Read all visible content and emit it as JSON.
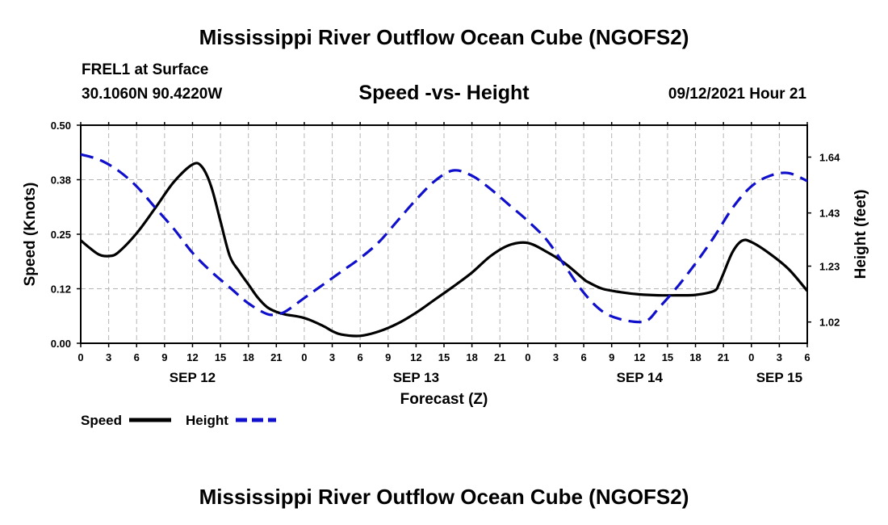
{
  "header": {
    "title": "Mississippi River Outflow Ocean Cube (NGOFS2)",
    "station": "FREL1 at Surface",
    "coords": "30.1060N  90.4220W",
    "subtitle": "Speed -vs- Height",
    "datetime": "09/12/2021 Hour 21"
  },
  "footer": {
    "title": "Mississippi River Outflow Ocean Cube (NGOFS2)"
  },
  "chart_data": {
    "type": "line",
    "title": "Speed -vs- Height",
    "xlabel": "Forecast (Z)",
    "ylabel": "Speed (Knots)",
    "y2label": "Height (feet)",
    "xlim": [
      0,
      78
    ],
    "ylim": [
      0,
      0.5
    ],
    "y2lim": [
      0.94,
      1.76
    ],
    "grid": true,
    "x_tick_values": [
      0,
      3,
      6,
      9,
      12,
      15,
      18,
      21,
      24,
      27,
      30,
      33,
      36,
      39,
      42,
      45,
      48,
      51,
      54,
      57,
      60,
      63,
      66,
      69,
      72,
      75,
      78
    ],
    "x_tick_labels": [
      "0",
      "3",
      "6",
      "9",
      "12",
      "15",
      "18",
      "21",
      "0",
      "3",
      "6",
      "9",
      "12",
      "15",
      "18",
      "21",
      "0",
      "3",
      "6",
      "9",
      "12",
      "15",
      "18",
      "21",
      "0",
      "3",
      "6"
    ],
    "day_labels": [
      {
        "label": "SEP 12",
        "x": 12
      },
      {
        "label": "SEP 13",
        "x": 36
      },
      {
        "label": "SEP 14",
        "x": 60
      },
      {
        "label": "SEP 15",
        "x": 75
      }
    ],
    "y_ticks": [
      {
        "value": 0.0,
        "label": "0.00"
      },
      {
        "value": 0.125,
        "label": "0.12"
      },
      {
        "value": 0.25,
        "label": "0.25"
      },
      {
        "value": 0.375,
        "label": "0.38"
      },
      {
        "value": 0.5,
        "label": "0.50"
      }
    ],
    "y2_ticks": [
      {
        "value": 1.02,
        "label": "1.02"
      },
      {
        "value": 1.23,
        "label": "1.23"
      },
      {
        "value": 1.43,
        "label": "1.43"
      },
      {
        "value": 1.64,
        "label": "1.64"
      }
    ],
    "legend": {
      "placement": "bottom-left",
      "speed": "Speed",
      "height": "Height"
    },
    "series": [
      {
        "name": "Speed",
        "axis": "left",
        "color": "#000000",
        "dash": "solid",
        "x": [
          0,
          1,
          2,
          3,
          4,
          6,
          8,
          10,
          12,
          13,
          14,
          15,
          16,
          17,
          18,
          19,
          20,
          21,
          22,
          24,
          26,
          27,
          28,
          30,
          32,
          34,
          36,
          38,
          40,
          42,
          44,
          46,
          48,
          50,
          52,
          54,
          54.5,
          56,
          58,
          60,
          62,
          64,
          66,
          68,
          68.5,
          69,
          70,
          71,
          72,
          74,
          76,
          78
        ],
        "y": [
          0.236,
          0.218,
          0.203,
          0.2,
          0.208,
          0.252,
          0.31,
          0.37,
          0.41,
          0.405,
          0.36,
          0.28,
          0.2,
          0.165,
          0.135,
          0.105,
          0.083,
          0.072,
          0.066,
          0.058,
          0.04,
          0.028,
          0.02,
          0.017,
          0.027,
          0.045,
          0.07,
          0.1,
          0.13,
          0.162,
          0.2,
          0.225,
          0.23,
          0.21,
          0.183,
          0.147,
          0.14,
          0.125,
          0.117,
          0.112,
          0.11,
          0.11,
          0.111,
          0.12,
          0.135,
          0.16,
          0.21,
          0.235,
          0.232,
          0.205,
          0.17,
          0.12
        ]
      },
      {
        "name": "Height",
        "axis": "right",
        "color": "#1010cc",
        "dash": "dashed",
        "x": [
          0,
          2,
          4,
          6,
          8,
          10,
          12,
          14,
          16,
          18,
          20,
          21,
          22,
          24,
          26,
          28,
          30,
          32,
          34,
          36,
          38,
          40,
          42,
          44,
          46,
          48,
          50,
          52,
          54,
          56,
          58,
          60,
          61,
          62,
          64,
          66,
          68,
          70,
          72,
          74,
          76,
          78
        ],
        "y": [
          1.65,
          1.63,
          1.59,
          1.53,
          1.45,
          1.37,
          1.28,
          1.21,
          1.15,
          1.09,
          1.05,
          1.05,
          1.06,
          1.11,
          1.16,
          1.21,
          1.26,
          1.32,
          1.4,
          1.48,
          1.55,
          1.59,
          1.57,
          1.52,
          1.46,
          1.4,
          1.33,
          1.23,
          1.13,
          1.06,
          1.03,
          1.02,
          1.03,
          1.07,
          1.15,
          1.24,
          1.34,
          1.45,
          1.53,
          1.57,
          1.58,
          1.55
        ]
      }
    ]
  }
}
